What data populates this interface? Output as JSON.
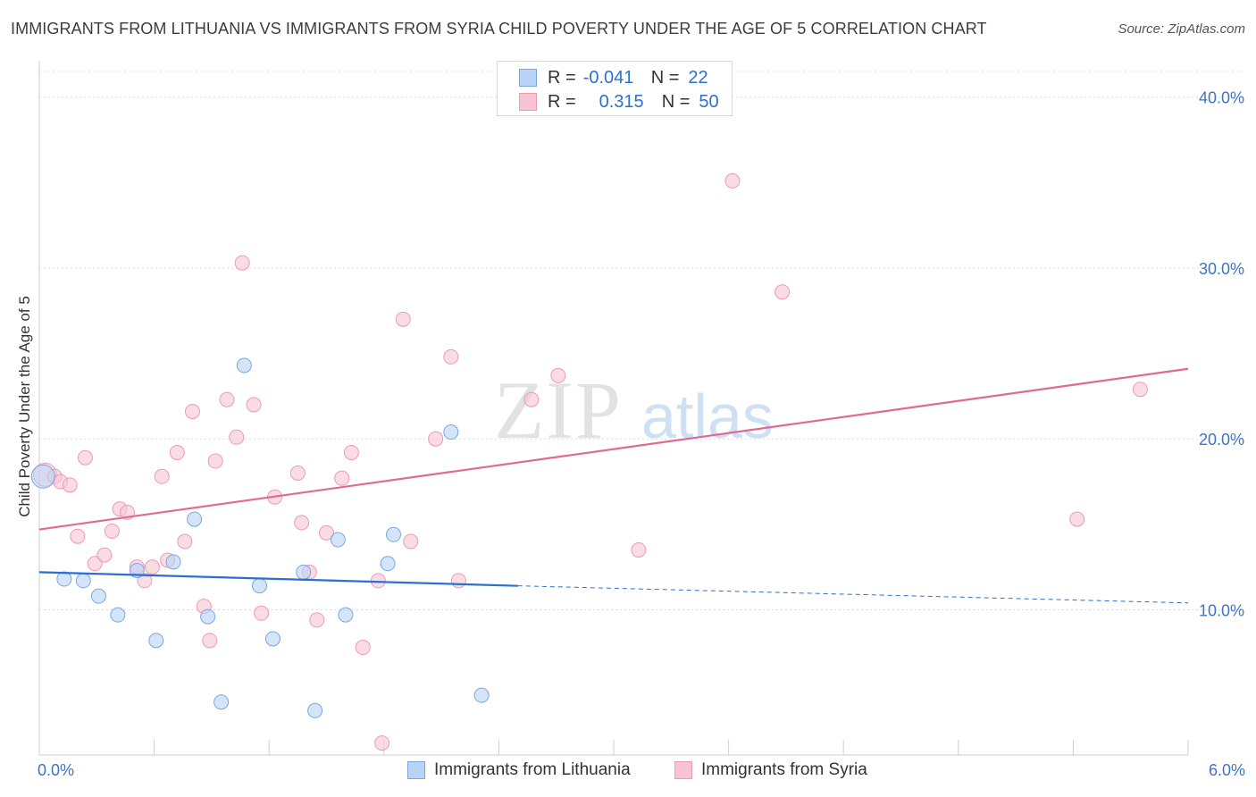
{
  "title": "IMMIGRANTS FROM LITHUANIA VS IMMIGRANTS FROM SYRIA CHILD POVERTY UNDER THE AGE OF 5 CORRELATION CHART",
  "source": "Source: ZipAtlas.com",
  "legend": {
    "r_label": "R =",
    "n_label": "N =",
    "lithuania": {
      "r": "-0.041",
      "n": "22"
    },
    "syria": {
      "r": "0.315",
      "n": "50"
    }
  },
  "watermark": {
    "zip": "ZIP",
    "atlas": "atlas"
  },
  "colors": {
    "lithuania_fill": "#b8d3f5",
    "lithuania_stroke": "#7aa6e0",
    "lithuania_line": "#2a6fd1",
    "syria_fill": "#f8c4d4",
    "syria_stroke": "#eb9ab4",
    "syria_line": "#e26893",
    "tick_label": "#3f73c4"
  },
  "chart_data": {
    "type": "scatter",
    "title": "IMMIGRANTS FROM LITHUANIA VS IMMIGRANTS FROM SYRIA CHILD POVERTY UNDER THE AGE OF 5 CORRELATION CHART",
    "xlabel": "",
    "ylabel": "Child Poverty Under the Age of 5",
    "xlim": [
      0,
      6
    ],
    "ylim": [
      1.5,
      41.5
    ],
    "x_tick_labels": [
      "0.0%",
      "6.0%"
    ],
    "y_ticks": [
      10,
      20,
      30,
      40
    ],
    "y_tick_labels": [
      "10.0%",
      "20.0%",
      "30.0%",
      "40.0%"
    ],
    "grid": true,
    "legend_position": "top-center",
    "series": [
      {
        "name": "Immigrants from Lithuania",
        "points": [
          [
            0.02,
            17.8
          ],
          [
            0.13,
            11.8
          ],
          [
            0.23,
            11.7
          ],
          [
            0.31,
            10.8
          ],
          [
            0.41,
            9.7
          ],
          [
            0.51,
            12.3
          ],
          [
            0.61,
            8.2
          ],
          [
            0.7,
            12.8
          ],
          [
            0.81,
            15.3
          ],
          [
            0.88,
            9.6
          ],
          [
            0.95,
            4.6
          ],
          [
            1.07,
            24.3
          ],
          [
            1.15,
            11.4
          ],
          [
            1.22,
            8.3
          ],
          [
            1.38,
            12.2
          ],
          [
            1.44,
            4.1
          ],
          [
            1.56,
            14.1
          ],
          [
            1.6,
            9.7
          ],
          [
            1.82,
            12.7
          ],
          [
            1.85,
            14.4
          ],
          [
            2.15,
            20.4
          ],
          [
            2.31,
            5.0
          ]
        ],
        "trend": {
          "x0": 0,
          "y0": 12.2,
          "x1": 2.5,
          "y1": 11.4,
          "dash_x1": 6.0,
          "dash_y1": 10.4
        }
      },
      {
        "name": "Immigrants from Syria",
        "points": [
          [
            0.03,
            17.9
          ],
          [
            0.08,
            17.8
          ],
          [
            0.11,
            17.5
          ],
          [
            0.16,
            17.3
          ],
          [
            0.2,
            14.3
          ],
          [
            0.24,
            18.9
          ],
          [
            0.29,
            12.7
          ],
          [
            0.34,
            13.2
          ],
          [
            0.38,
            14.6
          ],
          [
            0.42,
            15.9
          ],
          [
            0.46,
            15.7
          ],
          [
            0.51,
            12.5
          ],
          [
            0.55,
            11.7
          ],
          [
            0.59,
            12.5
          ],
          [
            0.64,
            17.8
          ],
          [
            0.67,
            12.9
          ],
          [
            0.72,
            19.2
          ],
          [
            0.76,
            14.0
          ],
          [
            0.8,
            21.6
          ],
          [
            0.86,
            10.2
          ],
          [
            0.89,
            8.2
          ],
          [
            0.92,
            18.7
          ],
          [
            0.98,
            22.3
          ],
          [
            1.03,
            20.1
          ],
          [
            1.06,
            30.3
          ],
          [
            1.12,
            22.0
          ],
          [
            1.16,
            9.8
          ],
          [
            1.23,
            16.6
          ],
          [
            1.35,
            18.0
          ],
          [
            1.37,
            15.1
          ],
          [
            1.41,
            12.2
          ],
          [
            1.45,
            9.4
          ],
          [
            1.5,
            14.5
          ],
          [
            1.58,
            17.7
          ],
          [
            1.63,
            19.2
          ],
          [
            1.69,
            7.8
          ],
          [
            1.77,
            11.7
          ],
          [
            1.9,
            27.0
          ],
          [
            1.94,
            14.0
          ],
          [
            2.07,
            20.0
          ],
          [
            2.15,
            24.8
          ],
          [
            2.19,
            11.7
          ],
          [
            2.57,
            22.3
          ],
          [
            2.71,
            23.7
          ],
          [
            3.13,
            13.5
          ],
          [
            3.62,
            35.1
          ],
          [
            3.88,
            28.6
          ],
          [
            5.42,
            15.3
          ],
          [
            5.75,
            22.9
          ],
          [
            1.79,
            2.2
          ]
        ],
        "trend": {
          "x0": 0,
          "y0": 14.7,
          "x1": 6.0,
          "y1": 24.1
        }
      }
    ]
  },
  "bottom_legend": {
    "lithuania": "Immigrants from Lithuania",
    "syria": "Immigrants from Syria"
  }
}
